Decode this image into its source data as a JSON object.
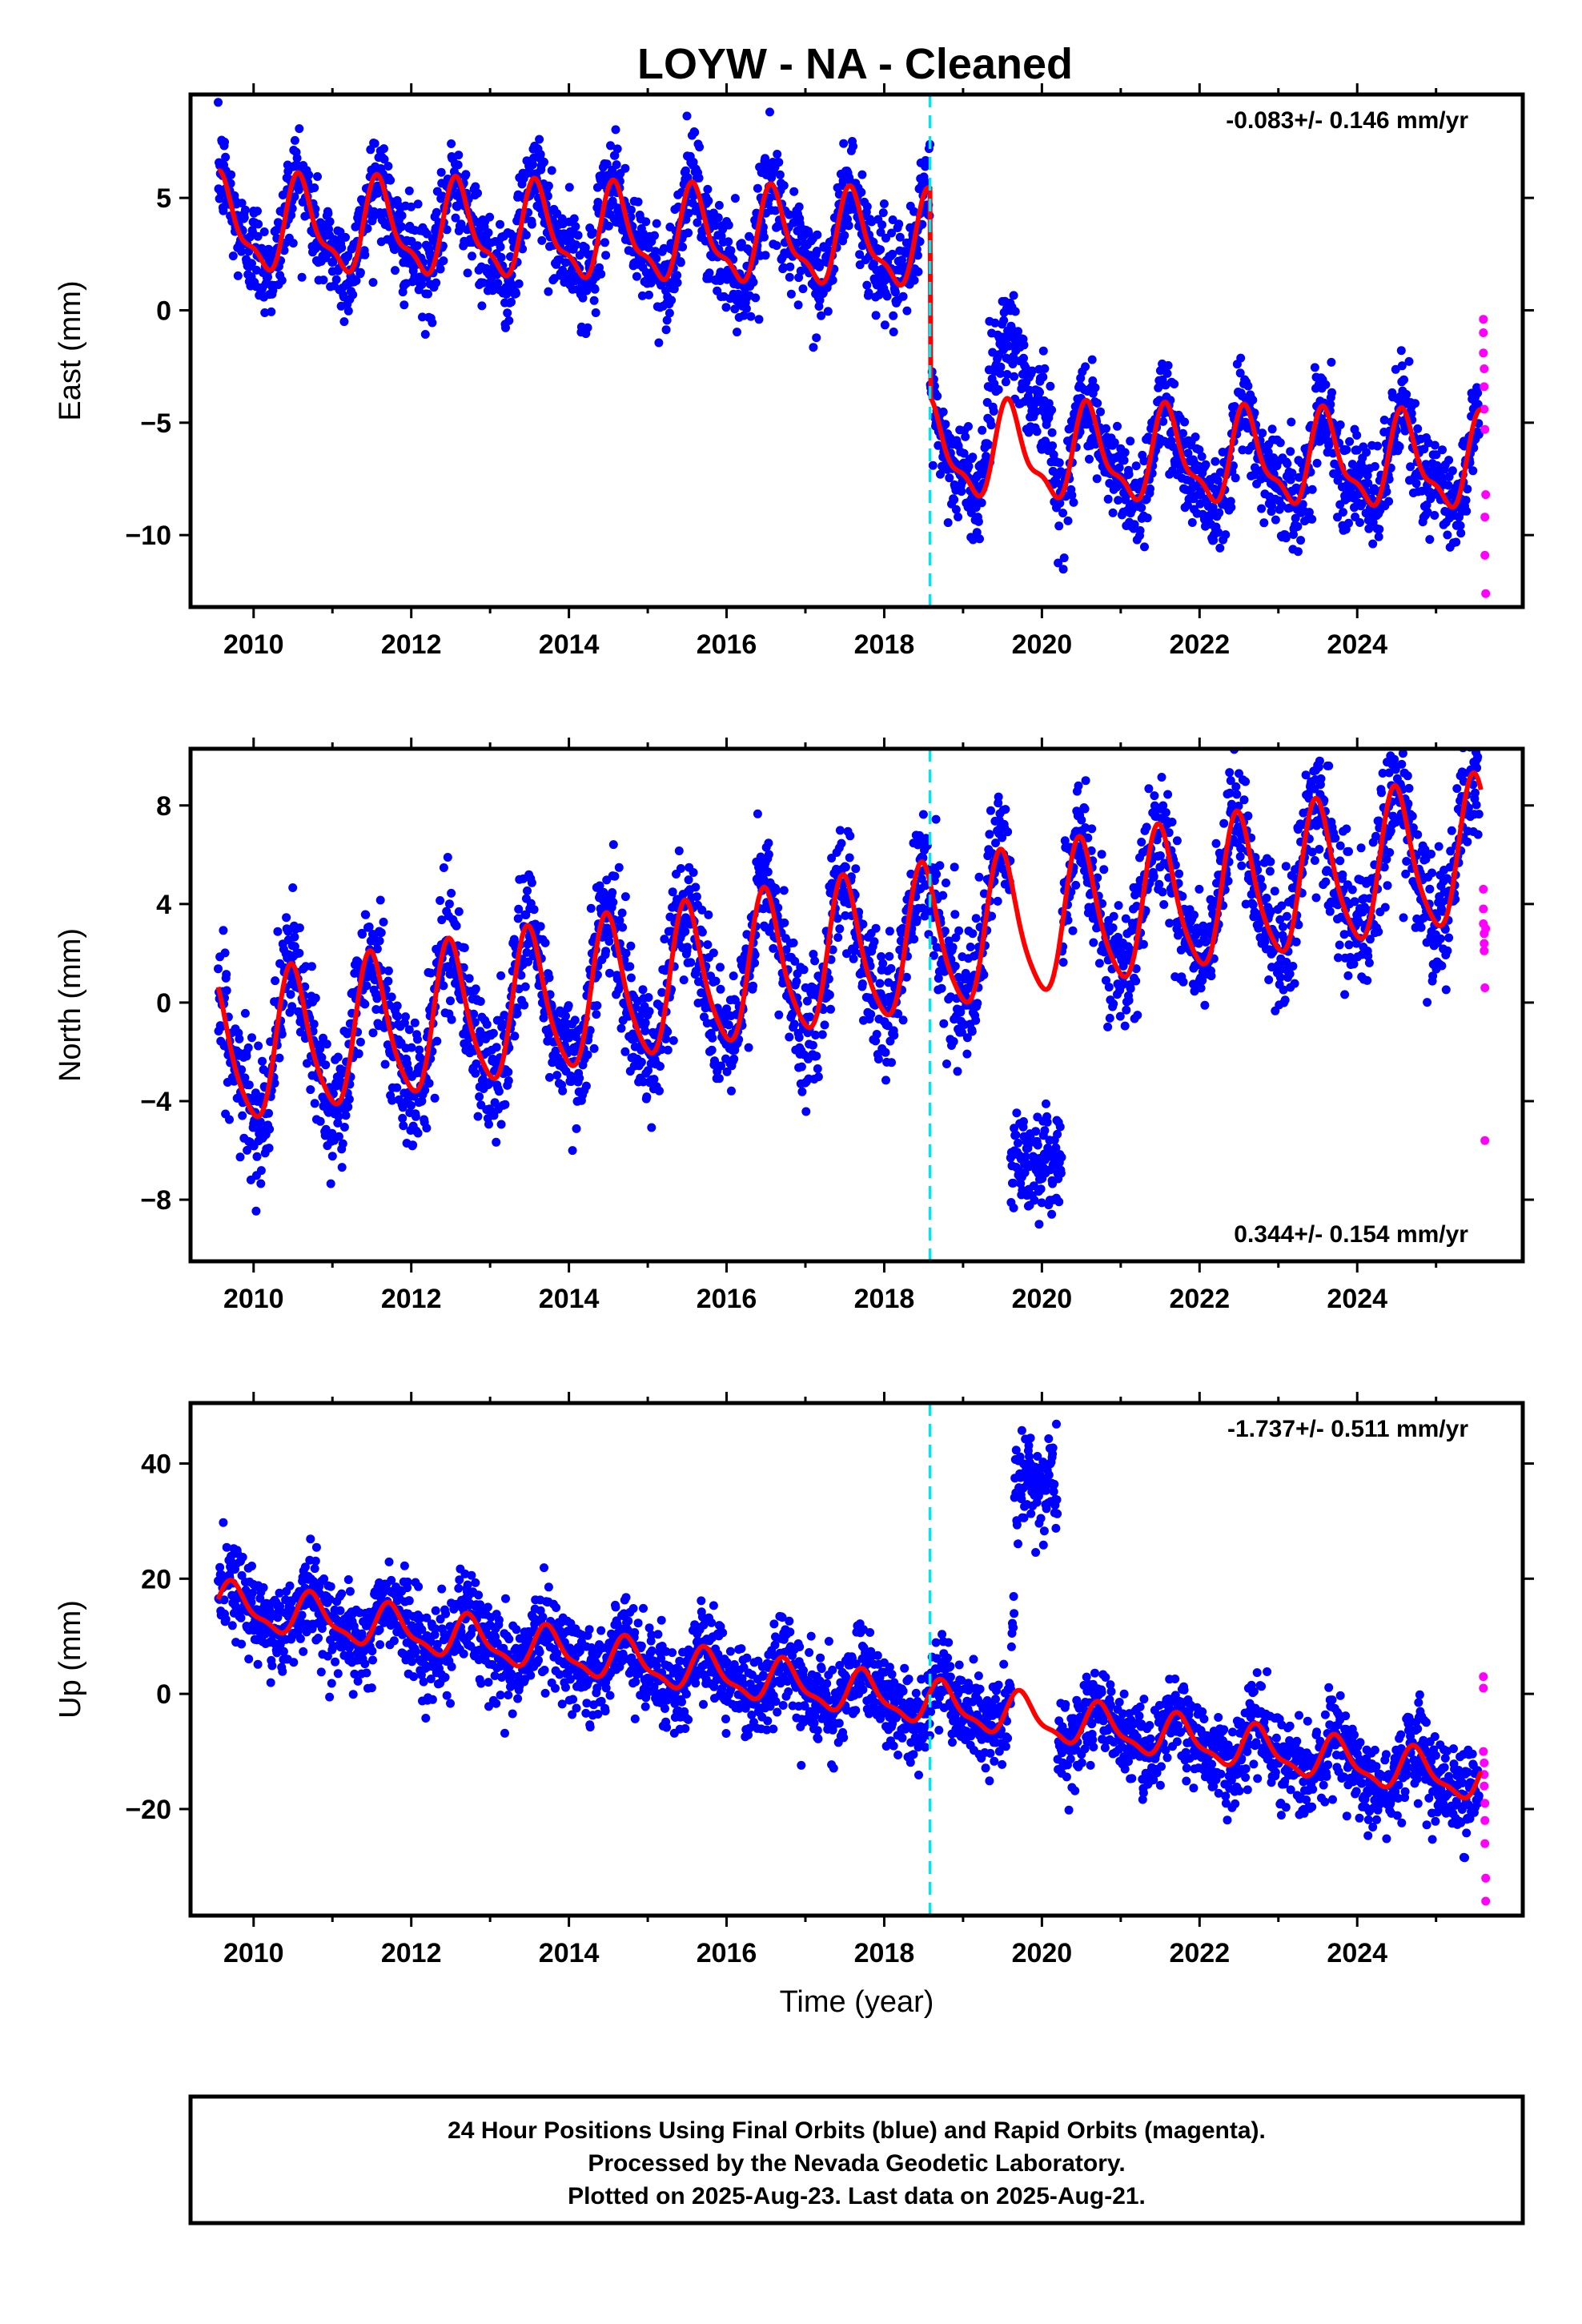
{
  "title": "LOYW  - NA - Cleaned",
  "colors": {
    "final": "#0000ff",
    "rapid": "#ff00ff",
    "model": "#ff0000",
    "offset_line": "#00e5ee"
  },
  "footer": {
    "line1": "24 Hour Positions Using Final Orbits (blue) and Rapid Orbits (magenta).",
    "line2": "Processed by the Nevada Geodetic Laboratory.",
    "line3": "Plotted on 2025-Aug-23. Last data on 2025-Aug-21."
  },
  "chart_data": [
    {
      "type": "scatter",
      "component": "east",
      "ylabel": "East (mm)",
      "xlabel": "",
      "xlim": [
        2009.2,
        2026.1
      ],
      "ylim": [
        -13.2,
        9.6
      ],
      "x_ticks": [
        2010,
        2012,
        2014,
        2016,
        2018,
        2020,
        2022,
        2024
      ],
      "x_tick_labels": [
        "2010",
        "2012",
        "2014",
        "2016",
        "2018",
        "2020",
        "2022",
        "2024"
      ],
      "y_ticks": [
        5,
        0,
        -5,
        -10
      ],
      "y_tick_labels": [
        "5",
        "0",
        "−5",
        "−10"
      ],
      "rate_text": "-0.083+/- 0.146 mm/yr",
      "rate_position": "top-right",
      "offset_epoch": 2018.58,
      "model": {
        "trend_mm_per_yr": -0.083,
        "level_before": 3.0,
        "level_after": -6.3,
        "annual_amplitude": 1.9,
        "annual_peak_doy_fraction": 0.6,
        "semiannual_amplitude": 0.7
      },
      "final_series": {
        "start": 2009.55,
        "end": 2025.55,
        "scatter_std": 1.1,
        "excursions": [
          {
            "from": 2019.2,
            "to": 2020.2,
            "delta": 3.2
          }
        ]
      },
      "rapid_series": {
        "x": [
          2025.6,
          2025.6,
          2025.6,
          2025.61,
          2025.61,
          2025.61,
          2025.62,
          2025.62,
          2025.62,
          2025.63,
          2025.63
        ],
        "y": [
          -0.4,
          -1.0,
          -1.9,
          -2.6,
          -3.4,
          -4.4,
          -5.3,
          -9.2,
          -10.9,
          -12.6,
          -8.2
        ]
      }
    },
    {
      "type": "scatter",
      "component": "north",
      "ylabel": "North (mm)",
      "xlabel": "",
      "xlim": [
        2009.2,
        2026.1
      ],
      "ylim": [
        -10.5,
        10.3
      ],
      "x_ticks": [
        2010,
        2012,
        2014,
        2016,
        2018,
        2020,
        2022,
        2024
      ],
      "x_tick_labels": [
        "2010",
        "2012",
        "2014",
        "2016",
        "2018",
        "2020",
        "2022",
        "2024"
      ],
      "y_ticks": [
        8,
        4,
        0,
        -4,
        -8
      ],
      "y_tick_labels": [
        "8",
        "4",
        "0",
        "−4",
        "−8"
      ],
      "rate_text": "0.344+/- 0.154 mm/yr",
      "rate_position": "bottom-right",
      "offset_epoch": 2018.58,
      "model": {
        "trend_mm_per_yr": 0.344,
        "level_start": -2.2,
        "annual_amplitude": 2.9,
        "annual_peak_doy_fraction": 0.5,
        "semiannual_amplitude": 0.5
      },
      "final_series": {
        "start": 2009.55,
        "end": 2025.55,
        "scatter_std": 1.3,
        "excursions": [
          {
            "from": 2019.6,
            "to": 2020.25,
            "delta": -7.5
          }
        ]
      },
      "rapid_series": {
        "x": [
          2025.6,
          2025.6,
          2025.6,
          2025.61,
          2025.61,
          2025.61,
          2025.62,
          2025.62,
          2025.63
        ],
        "y": [
          4.6,
          3.8,
          3.2,
          2.8,
          2.4,
          2.1,
          0.6,
          -5.6,
          3.0
        ]
      }
    },
    {
      "type": "scatter",
      "component": "up",
      "ylabel": "Up (mm)",
      "xlabel": "Time (year)",
      "xlim": [
        2009.2,
        2026.1
      ],
      "ylim": [
        -38.5,
        50.5
      ],
      "x_ticks": [
        2010,
        2012,
        2014,
        2016,
        2018,
        2020,
        2022,
        2024
      ],
      "x_tick_labels": [
        "2010",
        "2012",
        "2014",
        "2016",
        "2018",
        "2020",
        "2022",
        "2024"
      ],
      "y_ticks": [
        40,
        20,
        0,
        -20
      ],
      "y_tick_labels": [
        "40",
        "20",
        "0",
        "−20"
      ],
      "rate_text": "-1.737+/- 0.511 mm/yr",
      "rate_position": "top-right",
      "offset_epoch": 2018.58,
      "model": {
        "trend_mm_per_yr": -1.737,
        "level_start": 15.5,
        "annual_amplitude": 3.5,
        "annual_peak_doy_fraction": 0.75,
        "semiannual_amplitude": 1.2
      },
      "final_series": {
        "start": 2009.55,
        "end": 2025.55,
        "scatter_std": 3.8,
        "excursions": [
          {
            "from": 2019.6,
            "to": 2020.2,
            "delta": 38.0
          }
        ]
      },
      "rapid_series": {
        "x": [
          2025.6,
          2025.6,
          2025.6,
          2025.61,
          2025.61,
          2025.61,
          2025.62,
          2025.62,
          2025.62,
          2025.63,
          2025.63
        ],
        "y": [
          3.0,
          1.0,
          -10.0,
          -12.0,
          -14.0,
          -16.0,
          -19.0,
          -22.0,
          -26.0,
          -32.0,
          -36.0
        ]
      }
    }
  ]
}
